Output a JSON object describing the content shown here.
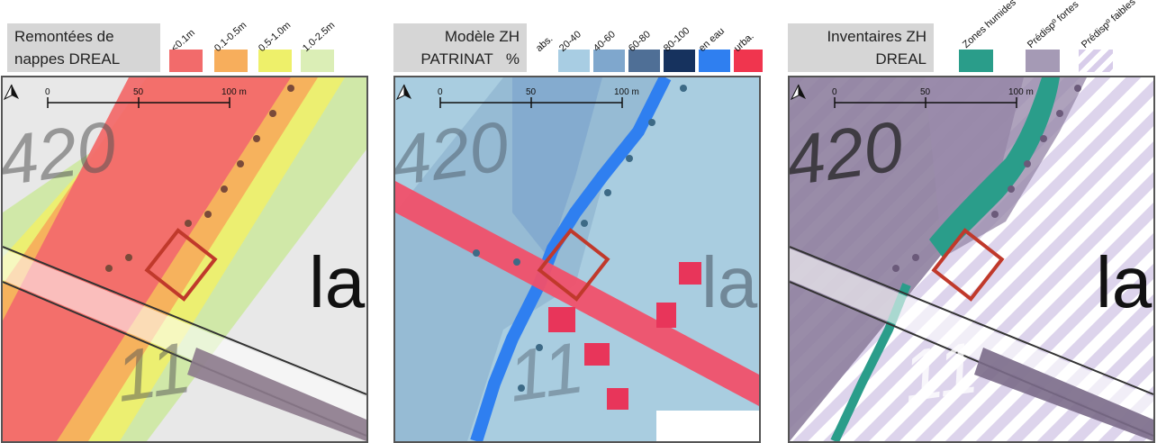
{
  "panels": [
    {
      "id": "remontees",
      "title_line1": "Remontées de",
      "title_line2": "nappes DREAL",
      "legend": [
        {
          "label": "<0.1m",
          "color": "#f26b6b"
        },
        {
          "label": "0.1-0.5m",
          "color": "#f7ae5c"
        },
        {
          "label": "0.5-1.0m",
          "color": "#eef06a"
        },
        {
          "label": "1.0-2.5m",
          "color": "#dbeeb6"
        }
      ]
    },
    {
      "id": "modele",
      "title_line1": "Modèle ZH",
      "title_line2": "PATRINAT",
      "title_unit": "%",
      "legend": [
        {
          "label": "abs.",
          "color": null
        },
        {
          "label": "20-40",
          "color": "#a8cde3"
        },
        {
          "label": "40-60",
          "color": "#7fa7cd"
        },
        {
          "label": "60-80",
          "color": "#4f6f96"
        },
        {
          "label": "80-100",
          "color": "#16325e"
        },
        {
          "label": "en eau",
          "color": "#2f7ff0"
        },
        {
          "label": "urba.",
          "color": "#f0354e"
        }
      ]
    },
    {
      "id": "inventaires",
      "title_line1": "Inventaires ZH",
      "title_line2": "DREAL",
      "legend": [
        {
          "label": "Zones humides",
          "color": "#2a9d8a"
        },
        {
          "label": "Prédispº fortes",
          "color": "#a59ab5"
        },
        {
          "label": "Prédispº faibles",
          "color": "#d8cdea"
        }
      ]
    }
  ],
  "scale_bar": {
    "tick0": "0",
    "tick1": "50",
    "tick2": "100 m"
  },
  "map_labels": {
    "parcel_a": "420",
    "parcel_b": "11",
    "lieu": "la"
  },
  "colors": {
    "frame": "#c0392b",
    "north_arrow": "#111111"
  }
}
